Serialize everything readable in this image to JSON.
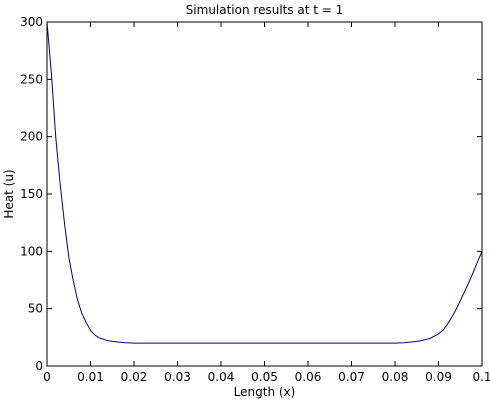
{
  "chart_data": {
    "type": "line",
    "title": "Simulation results at t = 1",
    "xlabel": "Length (x)",
    "ylabel": "Heat (u)",
    "xlim": [
      0,
      0.1
    ],
    "ylim": [
      0,
      300
    ],
    "grid": false,
    "x_ticks": [
      {
        "value": 0,
        "label": "0"
      },
      {
        "value": 0.01,
        "label": "0.01"
      },
      {
        "value": 0.02,
        "label": "0.02"
      },
      {
        "value": 0.03,
        "label": "0.03"
      },
      {
        "value": 0.04,
        "label": "0.04"
      },
      {
        "value": 0.05,
        "label": "0.05"
      },
      {
        "value": 0.06,
        "label": "0.06"
      },
      {
        "value": 0.07,
        "label": "0.07"
      },
      {
        "value": 0.08,
        "label": "0.08"
      },
      {
        "value": 0.09,
        "label": "0.09"
      },
      {
        "value": 0.1,
        "label": "0.1"
      }
    ],
    "y_ticks": [
      {
        "value": 0,
        "label": "0"
      },
      {
        "value": 50,
        "label": "50"
      },
      {
        "value": 100,
        "label": "100"
      },
      {
        "value": 150,
        "label": "150"
      },
      {
        "value": 200,
        "label": "200"
      },
      {
        "value": 250,
        "label": "250"
      },
      {
        "value": 300,
        "label": "300"
      }
    ],
    "line_color": "#00008b",
    "series": [
      {
        "x": [
          0,
          0.001,
          0.002,
          0.003,
          0.004,
          0.005,
          0.006,
          0.007,
          0.008,
          0.009,
          0.01,
          0.011,
          0.012,
          0.014,
          0.016,
          0.018,
          0.02,
          0.025,
          0.03,
          0.04,
          0.05,
          0.06,
          0.07,
          0.08,
          0.082,
          0.084,
          0.086,
          0.088,
          0.09,
          0.091,
          0.092,
          0.093,
          0.094,
          0.095,
          0.096,
          0.097,
          0.098,
          0.099,
          0.1
        ],
        "values": [
          300,
          255,
          200,
          160,
          125,
          95,
          75,
          58,
          46,
          38,
          31,
          27,
          24.5,
          22,
          21,
          20.3,
          20,
          20,
          20,
          20,
          20,
          20,
          20,
          20,
          20.3,
          21,
          22,
          24,
          28,
          31,
          36,
          42,
          49,
          57,
          65,
          73,
          82,
          91,
          100
        ]
      }
    ]
  }
}
